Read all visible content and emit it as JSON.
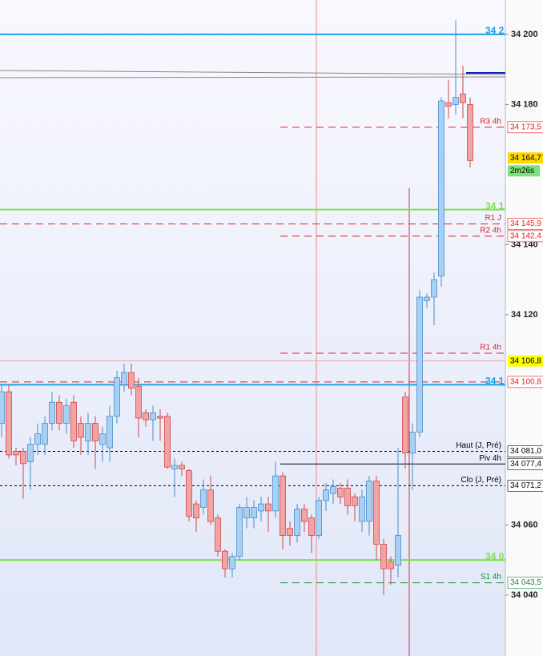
{
  "chart_data": {
    "type": "candlestick",
    "ylim": [
      34022.6,
      34209.8
    ],
    "yticks": [
      {
        "value": 34200,
        "label": "34 200"
      },
      {
        "value": 34180,
        "label": "34 180"
      },
      {
        "value": 34140,
        "label": "34 140"
      },
      {
        "value": 34120,
        "label": "34 120"
      },
      {
        "value": 34060,
        "label": "34 060"
      },
      {
        "value": 34040,
        "label": "34 040"
      }
    ],
    "up_color": "#a8d0f4",
    "down_color": "#f3a3a3",
    "open": [
      34089,
      34098,
      34081,
      34081,
      34078,
      34083,
      34083,
      34089,
      34095,
      34089,
      34095,
      34089,
      34084,
      34089,
      34083,
      34082,
      34091,
      34100,
      34103.5,
      34099.5,
      34092,
      34090,
      34091,
      34091,
      34076,
      34077,
      34075.5,
      34066,
      34065,
      34070,
      34062,
      34052.5,
      34047.5,
      34051,
      34062,
      34062,
      34064,
      34066,
      34064,
      34074,
      34059,
      34057,
      34064.5,
      34062,
      34057,
      34067,
      34069,
      34070.5,
      34070.5,
      34068,
      34061,
      34061,
      34072.5,
      34054.5,
      34049.5,
      34048.5,
      34096.5,
      34080.5,
      34086.5,
      34124,
      34125,
      34131,
      34180.5,
      34180,
      34183,
      34180
    ],
    "high": [
      34100,
      34100,
      34082,
      34082,
      34085,
      34089,
      34091,
      34098,
      34097,
      34096,
      34097,
      34091,
      34092,
      34091,
      34088,
      34094,
      34104,
      34106,
      34106,
      34102,
      34093,
      34094,
      34093,
      34092,
      34079,
      34078,
      34076,
      34067,
      34073,
      34074,
      34063,
      34053,
      34052,
      34066,
      34068,
      34067,
      34068,
      34068,
      34078,
      34075,
      34061,
      34066,
      34066,
      34063,
      34068,
      34072,
      34073,
      34072,
      34073,
      34069,
      34070,
      34074,
      34074,
      34056,
      34051,
      34082,
      34098,
      34089,
      34127,
      34126,
      34132,
      34182,
      34187,
      34204,
      34191,
      34182
    ],
    "low": [
      34085,
      34079,
      34077,
      34067.5,
      34070,
      34080,
      34080,
      34087,
      34087,
      34086,
      34082,
      34080,
      34080,
      34076,
      34078,
      34078,
      34089,
      34098,
      34097,
      34085,
      34088,
      34084,
      34084,
      34076,
      34068,
      34074,
      34061,
      34058,
      34063,
      34060,
      34051,
      34045,
      34045,
      34050,
      34059,
      34059,
      34061,
      34058,
      34062,
      34053,
      34054,
      34055,
      34058,
      34052,
      34056,
      34064,
      34066,
      34066,
      34063,
      34061,
      34058,
      34057,
      34050,
      34040,
      34043,
      34045,
      34076,
      34070,
      34085,
      34122,
      34117,
      34128,
      34176,
      34177,
      34176,
      34162
    ],
    "close": [
      34098,
      34080,
      34080,
      34077.5,
      34083,
      34086,
      34089,
      34095,
      34089,
      34094,
      34084,
      34085,
      34089,
      34084,
      34086,
      34091,
      34102,
      34103.5,
      34099,
      34090.5,
      34090,
      34092,
      34090.5,
      34076.5,
      34077,
      34076,
      34062.5,
      34062,
      34070,
      34061,
      34052.5,
      34047.5,
      34051,
      34065,
      34065,
      34065,
      34066,
      34064,
      34074,
      34057,
      34057,
      34064.5,
      34061,
      34057,
      34067,
      34070,
      34071,
      34068,
      34065.5,
      34065.5,
      34068,
      34072.5,
      34054.5,
      34047.5,
      34047.5,
      34057,
      34080.5,
      34086.5,
      34125,
      34125,
      34130,
      34181,
      34179.5,
      34182,
      34180.5,
      34164
    ],
    "levels": [
      {
        "value": 34200,
        "color": "#1aa3e8",
        "style": "solid",
        "tag": "34 2"
      },
      {
        "value": 34173.5,
        "color": "#e02020",
        "style": "dashed",
        "name": "R3 4h",
        "value_label": "34 173,5"
      },
      {
        "value": 34150,
        "color": "#7be34a",
        "style": "solid",
        "tag": "34 1"
      },
      {
        "value": 34145.9,
        "color": "#e02020",
        "style": "dashed",
        "name": "R1 J",
        "value_label": "34 145,9"
      },
      {
        "value": 34142.4,
        "color": "#e02020",
        "style": "dashed",
        "name": "R2 4h",
        "value_label": "34 142,4"
      },
      {
        "value": 34109,
        "color": "#e02020",
        "style": "dashed",
        "name": "R1 4h"
      },
      {
        "value": 34106.8,
        "color": "#f4a0a8",
        "style": "solid",
        "value_label": "34 106,8",
        "tag_fill": "#ffff00"
      },
      {
        "value": 34100.8,
        "color": "#e02020",
        "style": "dashed",
        "value_label": "34 100,8"
      },
      {
        "value": 34100,
        "color": "#1aa3e8",
        "style": "solid",
        "tag": "34 1"
      },
      {
        "value": 34081,
        "color": "#000000",
        "style": "dotted",
        "name": "Haut (J, Pré)",
        "value_label": "34 081,0"
      },
      {
        "value": 34077.4,
        "color": "#000000",
        "style": "solid",
        "name": "Piv 4h",
        "value_label": "34 077,4"
      },
      {
        "value": 34071.2,
        "color": "#000000",
        "style": "dotted",
        "name": "Clo (J, Pré)",
        "value_label": "34 071,2"
      },
      {
        "value": 34050,
        "color": "#7be34a",
        "style": "solid",
        "tag": "34 0"
      },
      {
        "value": 34043.5,
        "color": "#1a8a3a",
        "style": "dashed",
        "name": "S1 4h",
        "value_label": "34 043,5"
      }
    ],
    "last_price": {
      "value": 34164.7,
      "value_label": "34 164,7",
      "timer": "2m26s"
    }
  }
}
